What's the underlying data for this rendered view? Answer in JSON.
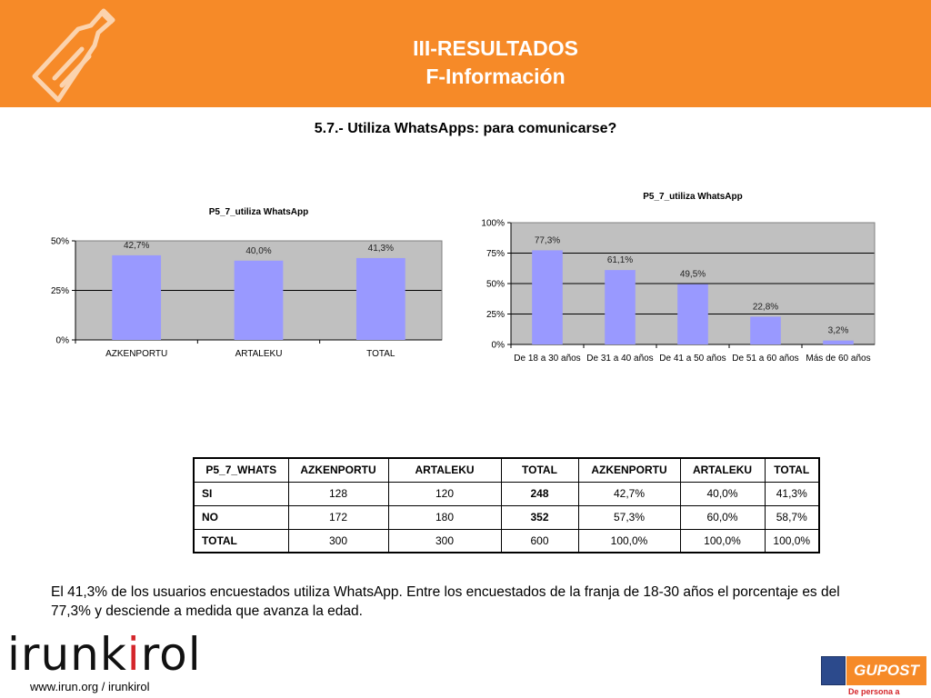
{
  "header": {
    "title_line1": "III-RESULTADOS",
    "title_line2": "F-Información",
    "background": "#f68a28",
    "icon": "bottle-icon"
  },
  "section_title": "5.7.- Utiliza WhatsApps: para comunicarse?",
  "chart_data": [
    {
      "type": "bar",
      "title": "P5_7_utiliza WhatsApp",
      "categories": [
        "AZKENPORTU",
        "ARTALEKU",
        "TOTAL"
      ],
      "values": [
        42.7,
        40.0,
        41.3
      ],
      "data_labels": [
        "42,7%",
        "40,0%",
        "41,3%"
      ],
      "ylim": [
        0,
        50
      ],
      "yticks": [
        0,
        25,
        50
      ],
      "ytick_labels": [
        "0%",
        "25%",
        "50%"
      ],
      "grid": true,
      "bar_color": "#9999ff",
      "plot_background": "#c0c0c0"
    },
    {
      "type": "bar",
      "title": "P5_7_utiliza WhatsApp",
      "categories": [
        "De 18 a 30 años",
        "De 31 a 40 años",
        "De 41 a 50 años",
        "De 51 a 60 años",
        "Más de 60 años"
      ],
      "values": [
        77.3,
        61.1,
        49.5,
        22.8,
        3.2
      ],
      "data_labels": [
        "77,3%",
        "61,1%",
        "49,5%",
        "22,8%",
        "3,2%"
      ],
      "ylim": [
        0,
        100
      ],
      "yticks": [
        0,
        25,
        50,
        75,
        100
      ],
      "ytick_labels": [
        "0%",
        "25%",
        "50%",
        "75%",
        "100%"
      ],
      "grid": true,
      "bar_color": "#9999ff",
      "plot_background": "#c0c0c0"
    }
  ],
  "table": {
    "headers": [
      "P5_7_WHATS",
      "AZKENPORTU",
      "ARTALEKU",
      "TOTAL",
      "AZKENPORTU",
      "ARTALEKU",
      "TOTAL"
    ],
    "rows": [
      [
        "SI",
        "128",
        "120",
        "248",
        "42,7%",
        "40,0%",
        "41,3%"
      ],
      [
        "NO",
        "172",
        "180",
        "352",
        "57,3%",
        "60,0%",
        "58,7%"
      ],
      [
        "TOTAL",
        "300",
        "300",
        "600",
        "100,0%",
        "100,0%",
        "100,0%"
      ]
    ]
  },
  "summary": "El 41,3% de los usuarios encuestados utiliza WhatsApp. Entre los encuestados de la franja de 18-30 años el porcentaje es del 77,3% y desciende a medida que avanza la edad.",
  "footer": {
    "logo_part1": "irunk",
    "logo_accent": "i",
    "logo_part2": "rol",
    "website": "www.irun.org / irunkirol",
    "gupost_name": "GUPOST",
    "gupost_tagline": "De persona a persona"
  }
}
